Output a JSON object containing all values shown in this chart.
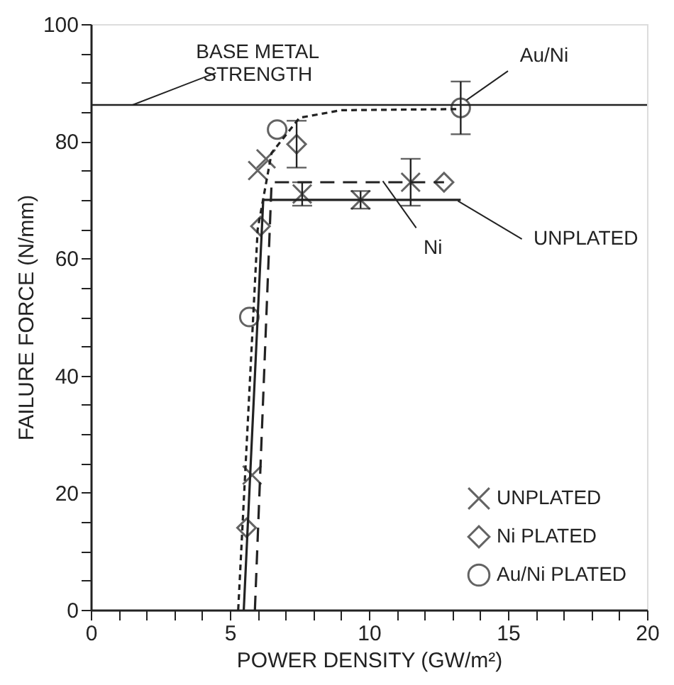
{
  "chart_data": {
    "type": "scatter",
    "xlabel": "POWER DENSITY (GW/m²)",
    "ylabel": "FAILURE FORCE (N/mm)",
    "xlim": [
      0,
      20
    ],
    "ylim": [
      0,
      100
    ],
    "xticks": [
      0,
      {
        "value": 1,
        "label": null
      },
      {
        "value": 2,
        "label": null
      },
      {
        "value": 3,
        "label": null
      },
      {
        "value": 4,
        "label": null
      },
      5,
      {
        "value": 6,
        "label": null
      },
      {
        "value": 7,
        "label": null
      },
      {
        "value": 8,
        "label": null
      },
      {
        "value": 9,
        "label": null
      },
      10,
      {
        "value": 11,
        "label": null
      },
      {
        "value": 12,
        "label": null
      },
      {
        "value": 13,
        "label": null
      },
      {
        "value": 14,
        "label": null
      },
      15,
      {
        "value": 16,
        "label": null
      },
      {
        "value": 17,
        "label": null
      },
      {
        "value": 18,
        "label": null
      },
      {
        "value": 19,
        "label": null
      },
      20
    ],
    "yticks": [
      0,
      {
        "value": 5,
        "label": null
      },
      {
        "value": 10,
        "label": null
      },
      {
        "value": 15,
        "label": null
      },
      20,
      {
        "value": 25,
        "label": null
      },
      {
        "value": 30,
        "label": null
      },
      {
        "value": 35,
        "label": null
      },
      40,
      {
        "value": 45,
        "label": null
      },
      {
        "value": 50,
        "label": null
      },
      {
        "value": 55,
        "label": null
      },
      60,
      {
        "value": 65,
        "label": null
      },
      {
        "value": 70,
        "label": null
      },
      {
        "value": 75,
        "label": null
      },
      80,
      {
        "value": 85,
        "label": null
      },
      {
        "value": 90,
        "label": null
      },
      {
        "value": 95,
        "label": null
      },
      100
    ],
    "grid": false,
    "legend": "bottom right",
    "series": [
      {
        "name": "UNPLATED",
        "type": "scatter",
        "marker": "cross",
        "color": "#222222",
        "x": [
          5.8,
          6.0,
          6.3,
          7.6,
          9.7,
          11.5
        ],
        "values": [
          23,
          75,
          77,
          71,
          70,
          73
        ],
        "errors": [
          null,
          null,
          null,
          2,
          1.5,
          4
        ]
      },
      {
        "name": "Ni PLATED",
        "type": "scatter",
        "marker": "diamond",
        "color": "#222222",
        "x": [
          5.6,
          6.1,
          7.4,
          12.7
        ],
        "values": [
          14,
          65.5,
          79.5,
          73
        ],
        "errors": [
          null,
          null,
          4,
          null
        ]
      },
      {
        "name": "Au/Ni PLATED",
        "type": "scatter",
        "marker": "circle",
        "color": "#222222",
        "x": [
          5.7,
          6.7,
          13.3
        ],
        "values": [
          50,
          82,
          85.7
        ],
        "errors": [
          null,
          null,
          4.5
        ]
      },
      {
        "type": "line",
        "line_style": "solid",
        "color": "#222222",
        "x": [
          5.5,
          6.2,
          13.3
        ],
        "values": [
          0,
          70,
          70
        ]
      },
      {
        "type": "line",
        "line_style": "dashed",
        "color": "#222222",
        "x": [
          5.9,
          6.5,
          12.7
        ],
        "values": [
          0,
          73,
          73
        ]
      },
      {
        "type": "line",
        "line_style": "dotted",
        "color": "#222222",
        "x": [
          5.3,
          6.0,
          6.5,
          7.5,
          9.0,
          13.3
        ],
        "values": [
          0,
          65,
          78,
          84,
          85.3,
          85.5
        ]
      }
    ],
    "ref_lines": [
      {
        "axis": "y",
        "value": 86.2,
        "color": "#222222",
        "line_style": "solid"
      }
    ],
    "annotations": [
      {
        "text": "BASE METAL\nSTRENGTH",
        "x": 1.5,
        "y": 86.2
      },
      {
        "text": "Au/Ni",
        "x": 13.5,
        "y": 87
      },
      {
        "text": "Ni",
        "x": 10.5,
        "y": 73.2
      },
      {
        "text": "UNPLATED",
        "x": 13.2,
        "y": 69.8
      }
    ]
  }
}
